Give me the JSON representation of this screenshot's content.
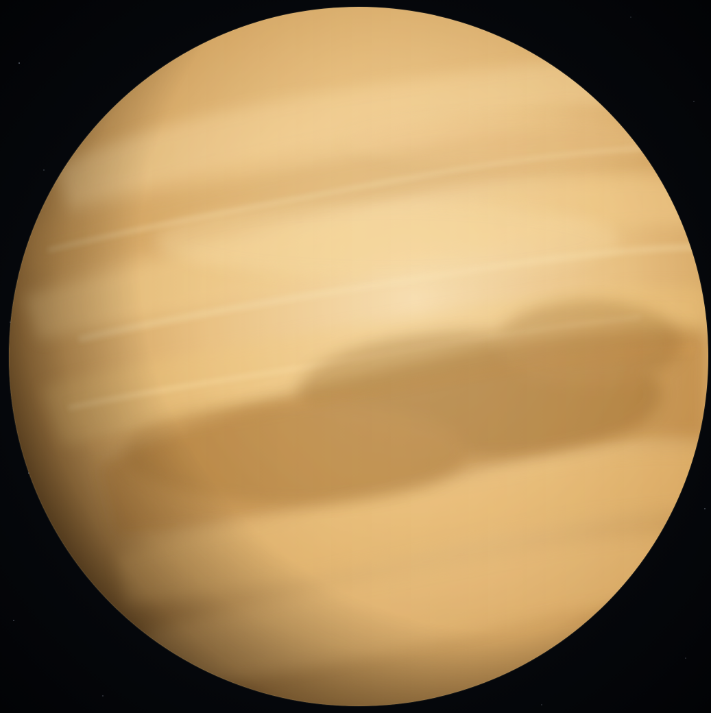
{
  "scene": {
    "subject": "planet",
    "colors": {
      "space": "#05070b",
      "planet_light": "#f2d59a",
      "planet_mid": "#d9ab62",
      "planet_dark_band": "#a8772f",
      "terminator_shadow": "#2a1a08"
    }
  }
}
